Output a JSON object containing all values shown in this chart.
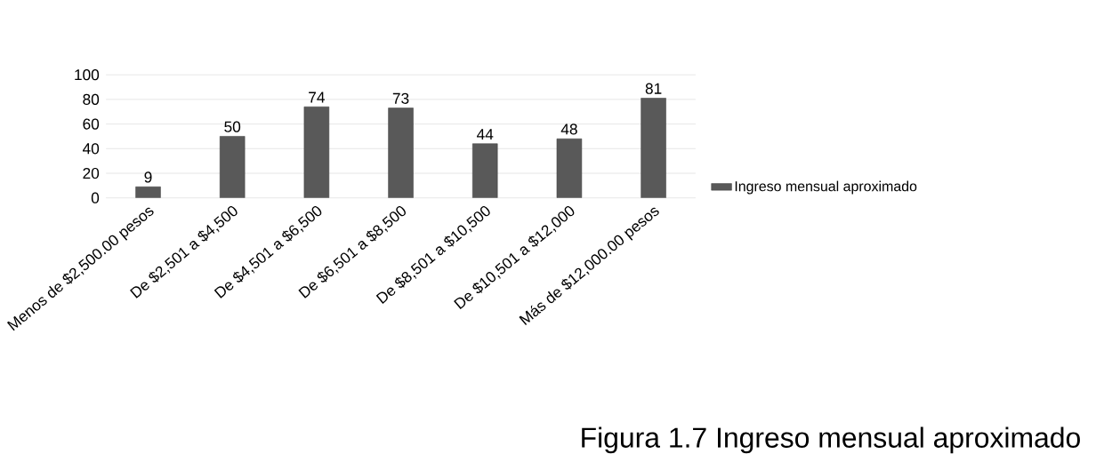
{
  "chart_data": {
    "type": "bar",
    "title": "Figura 1.7 Ingreso mensual aproximado",
    "categories": [
      "Menos de $2,500.00 pesos",
      "De $2,501 a $4,500",
      "De $4,501 a $6,500",
      "De $6,501 a $8,500",
      "De $8,501 a $10,500",
      "De $10,501 a $12,000",
      "Más de $12,000.00 pesos"
    ],
    "series": [
      {
        "name": "Ingreso mensual aproximado",
        "color": "#595959",
        "values": [
          9,
          50,
          74,
          73,
          44,
          48,
          81
        ]
      }
    ],
    "ylim": [
      0,
      100
    ],
    "yticks": [
      0,
      20,
      40,
      60,
      80,
      100
    ],
    "grid": "y",
    "legend": "right",
    "data_labels": true
  }
}
